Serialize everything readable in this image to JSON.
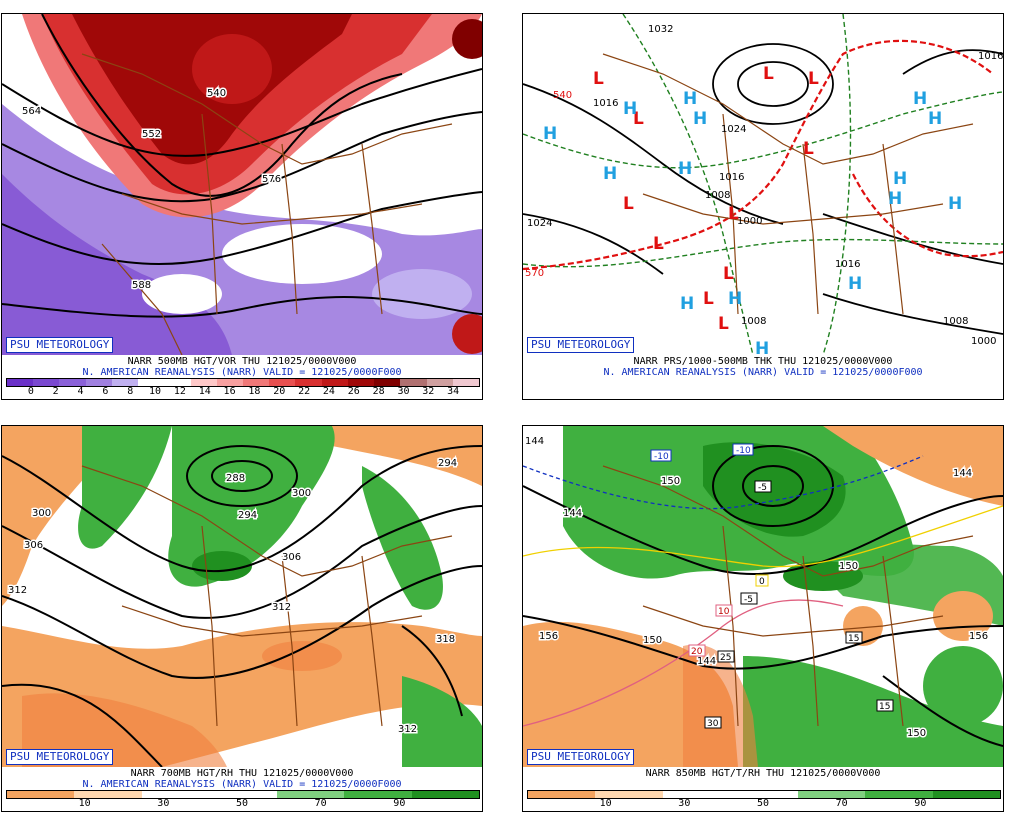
{
  "panels": [
    {
      "badge": "PSU METEOROLOGY",
      "line1": "NARR 500MB HGT/VOR THU 121025/0000V000",
      "line2": "N. AMERICAN REANALYSIS (NARR) VALID = 121025/0000F000",
      "contour_labels": [
        "564",
        "552",
        "540",
        "576",
        "588"
      ],
      "colorbar": {
        "ticks": [
          "0",
          "2",
          "4",
          "6",
          "8",
          "10",
          "12",
          "14",
          "16",
          "18",
          "20",
          "22",
          "24",
          "26",
          "28",
          "30",
          "32",
          "34"
        ],
        "colors": [
          "#6a30c8",
          "#7a48d0",
          "#8a60d8",
          "#a080e0",
          "#c0b0f0",
          "#ffffff",
          "#ffffff",
          "#ffc8c8",
          "#f8a0a0",
          "#f07878",
          "#e85050",
          "#d83030",
          "#c01818",
          "#a00808",
          "#800000",
          "#b07070",
          "#d0a0a0",
          "#f0c8d0"
        ]
      }
    },
    {
      "badge": "PSU METEOROLOGY",
      "line1": "NARR PRS/1000-500MB THK THU 121025/0000V000",
      "line2": "N. AMERICAN REANALYSIS (NARR) VALID = 121025/0000F000",
      "pressure_labels": [
        "1032",
        "1016",
        "1024",
        "1016",
        "1008",
        "1000",
        "1024",
        "1016",
        "1008",
        "1008",
        "1000",
        "1016"
      ],
      "thickness_labels": [
        "540",
        "570"
      ],
      "high_symbol": "H",
      "low_symbol": "L"
    },
    {
      "badge": "PSU METEOROLOGY",
      "line1": "NARR 700MB HGT/RH THU 121025/0000V000",
      "line2": "N. AMERICAN REANALYSIS (NARR) VALID = 121025/0000F000",
      "contour_labels": [
        "288",
        "294",
        "300",
        "306",
        "312",
        "300",
        "306",
        "312",
        "318",
        "294",
        "312"
      ],
      "colorbar": {
        "ticks": [
          "10",
          "30",
          "50",
          "70",
          "90"
        ],
        "colors": [
          "#f4a460",
          "#ffd8b0",
          "#ffffff",
          "#ffffff",
          "#80d080",
          "#40b040",
          "#209020"
        ]
      }
    },
    {
      "badge": "PSU METEOROLOGY",
      "line1": "NARR 850MB HGT/T/RH THU 121025/0000V000",
      "line2": "",
      "contour_labels": [
        "144",
        "150",
        "144",
        "156",
        "150",
        "144",
        "156",
        "150",
        "144",
        "150"
      ],
      "temp_labels": [
        "-10",
        "-10",
        "-5",
        "0",
        "-5",
        "10",
        "20",
        "25",
        "30",
        "15",
        "15"
      ],
      "colorbar": {
        "ticks": [
          "10",
          "30",
          "50",
          "70",
          "90"
        ],
        "colors": [
          "#f4a460",
          "#ffd8b0",
          "#ffffff",
          "#ffffff",
          "#80d080",
          "#40b040",
          "#209020"
        ]
      }
    }
  ]
}
